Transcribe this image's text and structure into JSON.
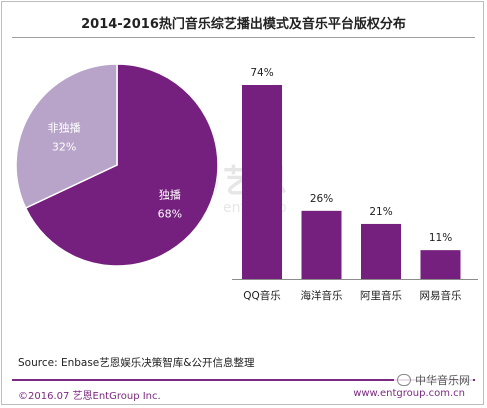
{
  "title": "2014-2016热门音乐综艺播出模式及音乐平台版权分布",
  "watermark": {
    "cn": "艺恩",
    "en": "entgroup"
  },
  "source": "Source: Enbase艺恩娱乐决策智库&公开信息整理",
  "copyright": "©2016.07 艺恩EntGroup Inc.",
  "site": "www.entgroup.com.cn",
  "wechat_label": "中华音乐网",
  "colors": {
    "pie_main": "#751f7e",
    "pie_other": "#b8a4c9",
    "bar": "#751f7e",
    "footer_accent": "#7b2a82"
  },
  "chart_data": [
    {
      "type": "pie",
      "title": "",
      "slices": [
        {
          "name": "独播",
          "value": 68,
          "label": "68%",
          "color": "#751f7e"
        },
        {
          "name": "非独播",
          "value": 32,
          "label": "32%",
          "color": "#b8a4c9"
        }
      ]
    },
    {
      "type": "bar",
      "title": "",
      "categories": [
        "QQ音乐",
        "海洋音乐",
        "阿里音乐",
        "网易音乐"
      ],
      "values": [
        74,
        26,
        21,
        11
      ],
      "value_labels": [
        "74%",
        "26%",
        "21%",
        "11%"
      ],
      "ylim": [
        0,
        74
      ],
      "grid": false,
      "legend": "none"
    }
  ]
}
